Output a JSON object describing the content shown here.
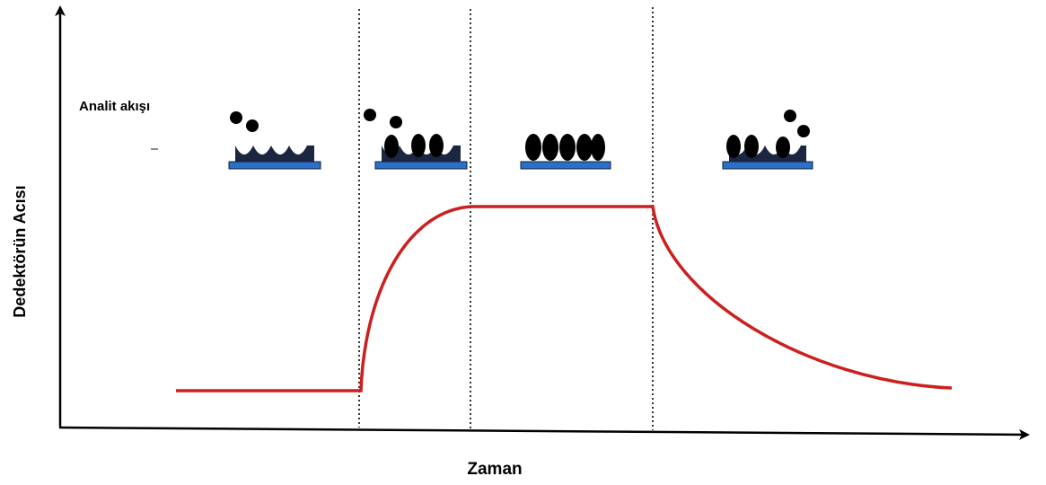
{
  "annotation": "Analit akışı",
  "y_axis_label": "Dedektörün Acısı",
  "x_axis_label": "Zaman"
}
